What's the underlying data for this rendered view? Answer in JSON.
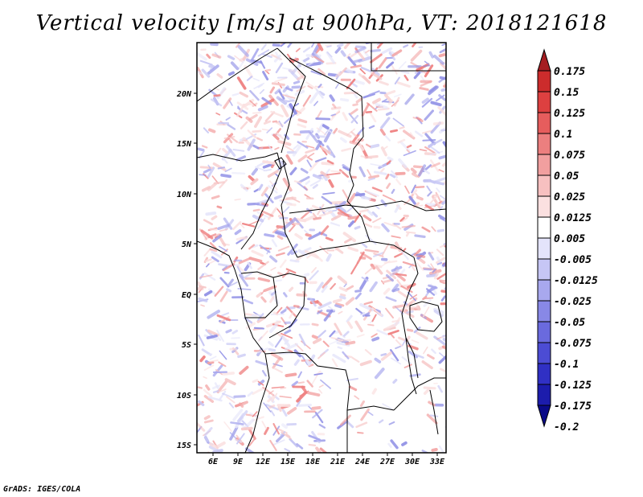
{
  "title": "Vertical velocity [m/s] at 900hPa, VT: 2018121618",
  "credit": "GrADS: IGES/COLA",
  "map": {
    "lat_labels": [
      "20N",
      "15N",
      "10N",
      "5N",
      "EQ",
      "5S",
      "10S",
      "15S"
    ],
    "lon_labels": [
      "6E",
      "9E",
      "12E",
      "15E",
      "18E",
      "21E",
      "24E",
      "27E",
      "30E",
      "33E"
    ]
  },
  "colorbar": {
    "labels": [
      "0.175",
      "0.15",
      "0.125",
      "0.1",
      "0.075",
      "0.05",
      "0.025",
      "0.0125",
      "0.005",
      "-0.005",
      "-0.0125",
      "-0.025",
      "-0.05",
      "-0.075",
      "-0.1",
      "-0.125",
      "-0.175",
      "-0.2"
    ],
    "colors": [
      "#a51e22",
      "#cc2c2c",
      "#dd4040",
      "#e65d5d",
      "#ec7f7f",
      "#f19f9f",
      "#f7c0c0",
      "#fbe0e0",
      "#ffffff",
      "#e4e4fb",
      "#c6c6f5",
      "#a8a8ee",
      "#8888e6",
      "#6a6ade",
      "#4c4cd4",
      "#3030c4",
      "#1c1cac",
      "#0a0a88"
    ]
  }
}
